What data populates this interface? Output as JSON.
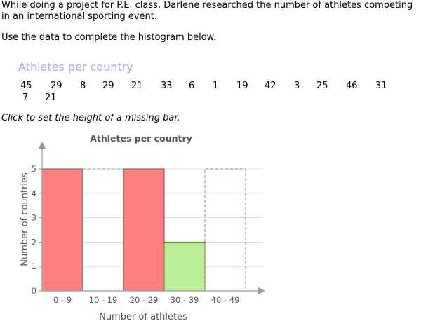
{
  "intro": "While doing a project for P.E. class, Darlene researched the number of athletes competing in an international sporting event.",
  "instruction": "Use the data to complete the histogram below.",
  "data_title": "Athletes per country",
  "data_values": [
    "45",
    "29",
    "8",
    "29",
    "21",
    "33",
    "6",
    "1",
    "19",
    "42",
    "3",
    "25",
    "46",
    "31",
    "7",
    "21"
  ],
  "click_instruction": "Click to set the height of a missing bar.",
  "colors": {
    "bar_fill": "#ff8080",
    "bar_stroke": "#555555",
    "selected_fill": "#bbee99",
    "selected_stroke": "#4a8a3a",
    "missing_green": "#77bb77",
    "missing_red": "#cc6666"
  },
  "chart_data": {
    "type": "bar",
    "title": "Athletes per country",
    "xlabel": "Number of athletes",
    "ylabel": "Number of countries",
    "categories": [
      "0 - 9",
      "10 - 19",
      "20 - 29",
      "30 - 39",
      "40 - 49"
    ],
    "values": [
      5,
      null,
      5,
      2,
      null
    ],
    "bar_states": [
      "given",
      "missing",
      "given",
      "selected",
      "missing"
    ],
    "missing_marker_color": [
      null,
      "green",
      null,
      null,
      "red"
    ],
    "ylim": [
      0,
      5
    ],
    "yticks": [
      0,
      1,
      2,
      3,
      4,
      5
    ],
    "grid": true
  }
}
